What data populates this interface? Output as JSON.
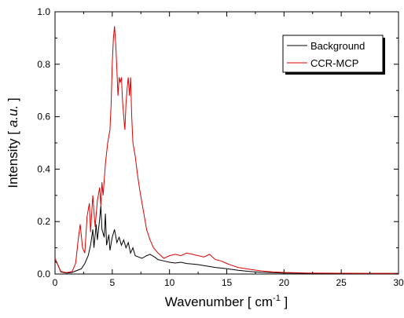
{
  "chart_data": {
    "type": "line",
    "xlabel": "Wavenumber [ cm",
    "xlabel_sup": "-1",
    "xlabel_end": " ]",
    "ylabel_pre": "Intensity [ ",
    "ylabel_unit": "a.u.",
    "ylabel_post": " ]",
    "xlim": [
      0,
      30
    ],
    "ylim": [
      0,
      1.0
    ],
    "xticks": [
      0,
      5,
      10,
      15,
      20,
      25,
      30
    ],
    "yticks": [
      0.0,
      0.2,
      0.4,
      0.6,
      0.8,
      1.0
    ],
    "ytick_labels": [
      "0.0",
      "0.2",
      "0.4",
      "0.6",
      "0.8",
      "1.0"
    ],
    "grid": false,
    "legend_position": "top-right",
    "series": [
      {
        "name": "Background",
        "color": "#000000",
        "points": [
          [
            0,
            0.05
          ],
          [
            0.2,
            0.04
          ],
          [
            0.5,
            0.008
          ],
          [
            1.0,
            0.004
          ],
          [
            1.5,
            0.006
          ],
          [
            2.0,
            0.015
          ],
          [
            2.3,
            0.02
          ],
          [
            2.6,
            0.04
          ],
          [
            2.9,
            0.07
          ],
          [
            3.1,
            0.11
          ],
          [
            3.3,
            0.17
          ],
          [
            3.4,
            0.1
          ],
          [
            3.6,
            0.19
          ],
          [
            3.7,
            0.13
          ],
          [
            3.9,
            0.21
          ],
          [
            4.0,
            0.26
          ],
          [
            4.1,
            0.17
          ],
          [
            4.3,
            0.14
          ],
          [
            4.4,
            0.23
          ],
          [
            4.5,
            0.11
          ],
          [
            4.7,
            0.15
          ],
          [
            4.8,
            0.09
          ],
          [
            5.0,
            0.14
          ],
          [
            5.2,
            0.17
          ],
          [
            5.4,
            0.12
          ],
          [
            5.6,
            0.14
          ],
          [
            5.8,
            0.11
          ],
          [
            6.0,
            0.13
          ],
          [
            6.2,
            0.1
          ],
          [
            6.4,
            0.12
          ],
          [
            6.6,
            0.08
          ],
          [
            6.8,
            0.1
          ],
          [
            7.0,
            0.07
          ],
          [
            7.3,
            0.065
          ],
          [
            7.6,
            0.06
          ],
          [
            8.0,
            0.07
          ],
          [
            8.3,
            0.075
          ],
          [
            8.7,
            0.065
          ],
          [
            9.0,
            0.055
          ],
          [
            9.5,
            0.05
          ],
          [
            10.0,
            0.045
          ],
          [
            10.5,
            0.042
          ],
          [
            11.0,
            0.045
          ],
          [
            11.5,
            0.04
          ],
          [
            12.0,
            0.038
          ],
          [
            12.5,
            0.036
          ],
          [
            13.0,
            0.032
          ],
          [
            14.0,
            0.025
          ],
          [
            15.0,
            0.02
          ],
          [
            16.0,
            0.014
          ],
          [
            17.0,
            0.01
          ],
          [
            18.0,
            0.007
          ],
          [
            19.0,
            0.005
          ],
          [
            20.0,
            0.004
          ],
          [
            22.0,
            0.003
          ],
          [
            25.0,
            0.002
          ],
          [
            28.0,
            0.002
          ],
          [
            30.0,
            0.002
          ]
        ]
      },
      {
        "name": "CCR-MCP",
        "color": "#dd0000",
        "points": [
          [
            0,
            0.06
          ],
          [
            0.2,
            0.04
          ],
          [
            0.5,
            0.01
          ],
          [
            1.0,
            0.005
          ],
          [
            1.5,
            0.01
          ],
          [
            1.8,
            0.04
          ],
          [
            2.0,
            0.12
          ],
          [
            2.2,
            0.19
          ],
          [
            2.4,
            0.1
          ],
          [
            2.6,
            0.08
          ],
          [
            2.8,
            0.22
          ],
          [
            3.0,
            0.27
          ],
          [
            3.1,
            0.16
          ],
          [
            3.3,
            0.3
          ],
          [
            3.5,
            0.18
          ],
          [
            3.7,
            0.28
          ],
          [
            3.9,
            0.33
          ],
          [
            4.0,
            0.26
          ],
          [
            4.1,
            0.35
          ],
          [
            4.2,
            0.3
          ],
          [
            4.4,
            0.42
          ],
          [
            4.6,
            0.5
          ],
          [
            4.8,
            0.55
          ],
          [
            4.9,
            0.65
          ],
          [
            5.0,
            0.8
          ],
          [
            5.1,
            0.9
          ],
          [
            5.2,
            0.945
          ],
          [
            5.3,
            0.88
          ],
          [
            5.4,
            0.78
          ],
          [
            5.5,
            0.68
          ],
          [
            5.6,
            0.75
          ],
          [
            5.7,
            0.73
          ],
          [
            5.8,
            0.75
          ],
          [
            5.9,
            0.66
          ],
          [
            6.0,
            0.6
          ],
          [
            6.1,
            0.55
          ],
          [
            6.2,
            0.65
          ],
          [
            6.3,
            0.71
          ],
          [
            6.4,
            0.75
          ],
          [
            6.5,
            0.68
          ],
          [
            6.6,
            0.75
          ],
          [
            6.7,
            0.6
          ],
          [
            6.8,
            0.5
          ],
          [
            7.0,
            0.45
          ],
          [
            7.2,
            0.38
          ],
          [
            7.4,
            0.32
          ],
          [
            7.6,
            0.27
          ],
          [
            7.8,
            0.22
          ],
          [
            8.0,
            0.17
          ],
          [
            8.3,
            0.13
          ],
          [
            8.6,
            0.1
          ],
          [
            9.0,
            0.08
          ],
          [
            9.5,
            0.06
          ],
          [
            10.0,
            0.07
          ],
          [
            10.5,
            0.075
          ],
          [
            11.0,
            0.07
          ],
          [
            11.5,
            0.08
          ],
          [
            12.0,
            0.075
          ],
          [
            12.5,
            0.07
          ],
          [
            13.0,
            0.065
          ],
          [
            13.5,
            0.075
          ],
          [
            14.0,
            0.055
          ],
          [
            14.5,
            0.05
          ],
          [
            15.0,
            0.04
          ],
          [
            15.5,
            0.032
          ],
          [
            16.0,
            0.025
          ],
          [
            17.0,
            0.018
          ],
          [
            18.0,
            0.012
          ],
          [
            19.0,
            0.008
          ],
          [
            20.0,
            0.006
          ],
          [
            22.0,
            0.004
          ],
          [
            25.0,
            0.003
          ],
          [
            28.0,
            0.002
          ],
          [
            30.0,
            0.002
          ]
        ]
      }
    ]
  }
}
